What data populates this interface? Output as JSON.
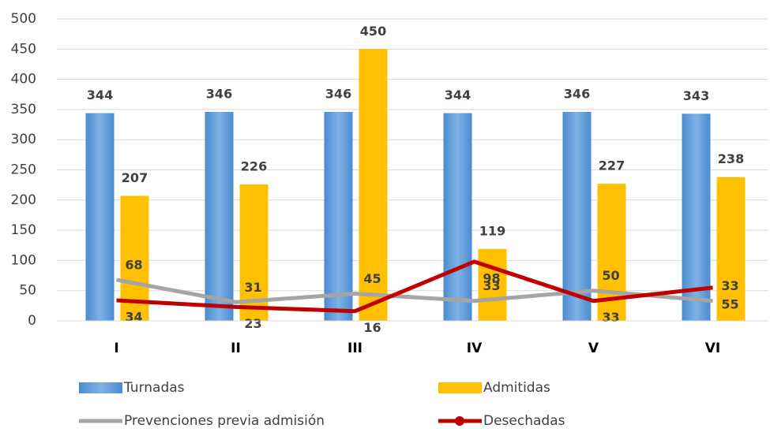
{
  "chart_data": {
    "type": "bar-line",
    "categories": [
      "I",
      "II",
      "III",
      "IV",
      "V",
      "VI"
    ],
    "series": [
      {
        "name": "Turnadas",
        "type": "bar",
        "color": "#5b9bd5",
        "values": [
          344,
          346,
          346,
          344,
          346,
          343
        ]
      },
      {
        "name": "Admitidas",
        "type": "bar",
        "color": "#ffc000",
        "values": [
          207,
          226,
          450,
          119,
          227,
          238
        ]
      },
      {
        "name": "Prevenciones previa admisión",
        "type": "line",
        "color": "#a5a5a5",
        "values": [
          68,
          31,
          45,
          33,
          50,
          33
        ]
      },
      {
        "name": "Desechadas",
        "type": "line",
        "color": "#c00000",
        "values": [
          34,
          23,
          16,
          98,
          33,
          55
        ]
      }
    ],
    "ylim": [
      0,
      500
    ],
    "yticks": [
      0,
      50,
      100,
      150,
      200,
      250,
      300,
      350,
      400,
      450,
      500
    ],
    "grid": true
  }
}
